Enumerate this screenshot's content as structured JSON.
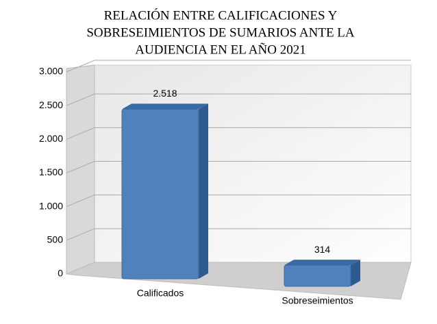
{
  "chart_data": {
    "type": "bar3d",
    "title": [
      "RELACIÓN ENTRE CALIFICACIONES Y",
      "SOBRESEIMIENTOS DE SUMARIOS ANTE LA",
      "AUDIENCIA EN EL AÑO 2021"
    ],
    "categories": [
      "Calificados",
      "Sobreseimientos"
    ],
    "values": [
      2518,
      314
    ],
    "value_labels": [
      "2.518",
      "314"
    ],
    "color": "#4f81bd",
    "ylim": [
      0,
      3000
    ],
    "yticks": [
      0,
      500,
      {
        "value": 1000,
        "label": "1.000"
      },
      {
        "value": 1500,
        "label": "1.500"
      },
      {
        "value": 2000,
        "label": "2.000"
      },
      {
        "value": 2500,
        "label": "2.500"
      },
      {
        "value": 3000,
        "label": "3.000"
      }
    ],
    "grid": true
  }
}
